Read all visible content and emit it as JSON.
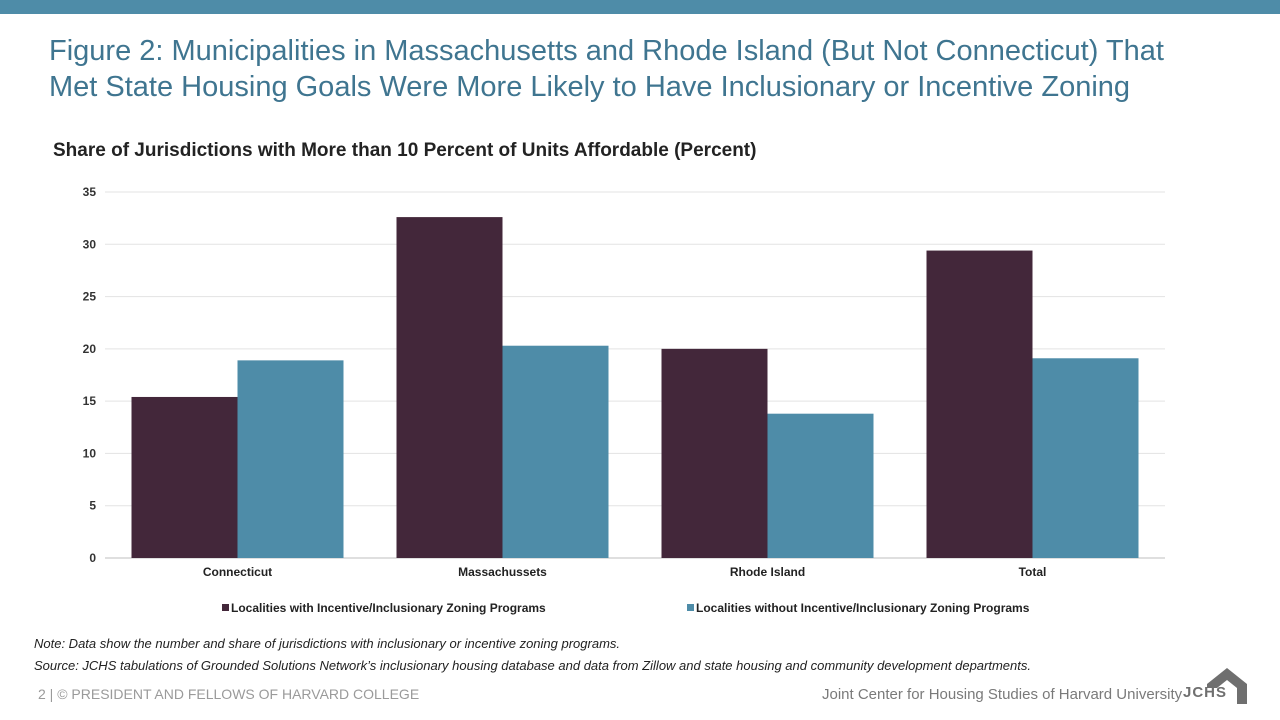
{
  "header": {
    "title_line1": "Figure 2: Municipalities in Massachusetts and Rhode Island (But Not Connecticut) That",
    "title_line2": "Met State Housing Goals Were More Likely to Have Inclusionary or Incentive Zoning",
    "accent_color": "#4e8ca8"
  },
  "chart_data": {
    "type": "bar",
    "title": "Share of Jurisdictions with More than 10 Percent of Units Affordable (Percent)",
    "categories": [
      "Connecticut",
      "Massachussets",
      "Rhode Island",
      "Total"
    ],
    "series": [
      {
        "name": "Localities with Incentive/Inclusionary Zoning Programs",
        "values": [
          15.4,
          32.6,
          20.0,
          29.4
        ],
        "color": "#43273a"
      },
      {
        "name": "Localities without Incentive/Inclusionary Zoning Programs",
        "values": [
          18.9,
          20.3,
          13.8,
          19.1
        ],
        "color": "#4e8ca8"
      }
    ],
    "ylim": [
      0,
      35
    ],
    "yticks": [
      0,
      5,
      10,
      15,
      20,
      25,
      30,
      35
    ],
    "grid": true,
    "legend": "bottom",
    "xlabel": "",
    "ylabel": ""
  },
  "notes": {
    "note": "Note: Data show the number and share of jurisdictions with inclusionary or incentive zoning programs.",
    "source": "Source: JCHS tabulations of Grounded Solutions Network’s inclusionary housing database and data from Zillow and state housing and community development departments."
  },
  "footer": {
    "left": "2 | © PRESIDENT AND FELLOWS OF HARVARD COLLEGE",
    "right": "Joint Center for Housing Studies of Harvard University",
    "logo_text": "JCHS"
  }
}
